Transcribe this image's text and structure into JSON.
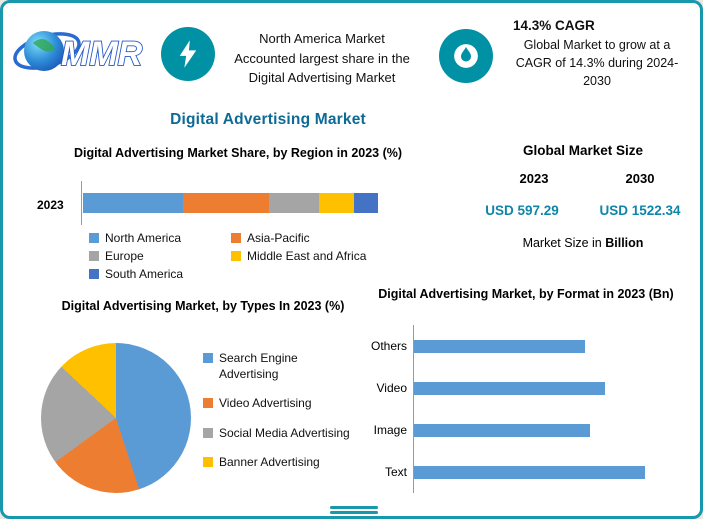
{
  "header": {
    "logo_text": "MMR",
    "left_highlight": {
      "icon": "lightning-icon",
      "lines": [
        "North America Market",
        "Accounted largest share in the",
        "Digital Advertising Market"
      ]
    },
    "right_highlight": {
      "icon": "flame-icon",
      "title": "14.3% CAGR",
      "lines": [
        "Global Market to grow at a",
        "CAGR of 14.3% during 2024-",
        "2030"
      ]
    }
  },
  "main_title": "Digital Advertising Market",
  "market_size": {
    "title": "Global Market Size",
    "columns": [
      {
        "year": "2023",
        "value": "USD 597.29"
      },
      {
        "year": "2030",
        "value": "USD 1522.34"
      }
    ],
    "note_prefix": "Market Size in ",
    "note_bold": "Billion"
  },
  "colors": {
    "accent_teal": "#1798AC",
    "badge_teal": "#0191A5",
    "title_blue": "#0D6A96",
    "value_teal": "#0E86A8"
  },
  "chart_data": [
    {
      "type": "bar",
      "subtype": "stacked-horizontal",
      "title": "Digital Advertising Market Share, by Region in 2023 (%)",
      "categories": [
        "2023"
      ],
      "series": [
        {
          "name": "North America",
          "values": [
            34
          ],
          "color": "#5B9BD5"
        },
        {
          "name": "Asia-Pacific",
          "values": [
            29
          ],
          "color": "#ED7D31"
        },
        {
          "name": "Europe",
          "values": [
            17
          ],
          "color": "#A5A5A5"
        },
        {
          "name": "Middle East and Africa",
          "values": [
            12
          ],
          "color": "#FFC000"
        },
        {
          "name": "South America",
          "values": [
            8
          ],
          "color": "#4472C4"
        }
      ],
      "xlim": [
        0,
        100
      ],
      "grid": false,
      "legend_position": "bottom"
    },
    {
      "type": "pie",
      "title": "Digital Advertising Market, by Types In 2023 (%)",
      "labels": [
        "Search Engine Advertising",
        "Video Advertising",
        "Social Media Advertising",
        "Banner Advertising"
      ],
      "values": [
        45,
        20,
        22,
        13
      ],
      "colors": [
        "#5B9BD5",
        "#ED7D31",
        "#A5A5A5",
        "#FFC000"
      ],
      "legend_position": "right"
    },
    {
      "type": "bar",
      "subtype": "horizontal",
      "title": "Digital Advertising Market, by Format in 2023 (Bn)",
      "categories": [
        "Others",
        "Video",
        "Image",
        "Text"
      ],
      "values": [
        170,
        190,
        175,
        230
      ],
      "xlim": [
        0,
        250
      ],
      "grid": false,
      "color": "#5B9BD5"
    }
  ]
}
